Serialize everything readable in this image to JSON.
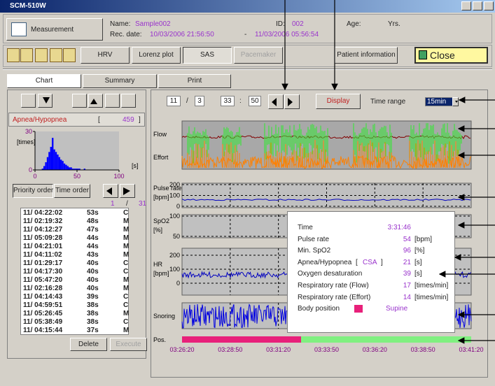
{
  "window": {
    "title": "SCM-510W"
  },
  "header": {
    "measurement": "Measurement",
    "name_label": "Name:",
    "name": "Sample002",
    "id_label": "ID:",
    "id": "002",
    "age_label": "Age:",
    "age_unit": "Yrs.",
    "rec_label": "Rec. date:",
    "rec_start": "10/03/2006 21:56:50",
    "rec_sep": "-",
    "rec_end": "11/03/2006 05:56:54"
  },
  "toolbar": {
    "tabs": [
      "HRV",
      "Lorenz plot",
      "SAS",
      "Pacemaker"
    ],
    "patient_info": "Patient information",
    "close": "Close"
  },
  "view_tabs": [
    "Chart",
    "Summary",
    "Print"
  ],
  "events": {
    "label": "Apnea/Hypopnea",
    "open": "[",
    "count": 459,
    "close": "]",
    "sort_buttons": [
      "Priority order",
      "Time order"
    ],
    "page": 1,
    "page_sep": "/",
    "pages": 31,
    "rows": [
      [
        "11/ 04:22:02",
        "53s",
        "C"
      ],
      [
        "11/ 02:19:32",
        "48s",
        "M"
      ],
      [
        "11/ 04:12:27",
        "47s",
        "M"
      ],
      [
        "11/ 05:09:28",
        "44s",
        "M"
      ],
      [
        "11/ 04:21:01",
        "44s",
        "M"
      ],
      [
        "11/ 04:11:02",
        "43s",
        "M"
      ],
      [
        "11/ 01:29:17",
        "40s",
        "C"
      ],
      [
        "11/ 04:17:30",
        "40s",
        "C"
      ],
      [
        "11/ 05:47:20",
        "40s",
        "M"
      ],
      [
        "11/ 02:16:28",
        "40s",
        "M"
      ],
      [
        "11/ 04:14:43",
        "39s",
        "C"
      ],
      [
        "11/ 04:59:51",
        "38s",
        "C"
      ],
      [
        "11/ 05:26:45",
        "38s",
        "M"
      ],
      [
        "11/ 05:38:49",
        "38s",
        "C"
      ],
      [
        "11/ 04:15:44",
        "37s",
        "M"
      ]
    ],
    "delete": "Delete",
    "execute": "Execute"
  },
  "chart_data": {
    "type": "histogram",
    "y_label": "[times]",
    "x_label": "[s]",
    "color": "#0000ff",
    "bins": [
      8,
      10,
      12,
      14,
      16,
      18,
      20,
      22,
      24,
      26,
      28,
      30,
      32,
      34,
      36,
      38,
      40,
      42,
      44,
      46,
      48,
      50,
      52,
      54,
      56,
      58,
      60
    ],
    "counts": [
      1,
      3,
      6,
      10,
      14,
      18,
      25,
      16,
      14,
      12,
      10,
      8,
      7,
      5,
      4,
      3,
      2,
      2,
      1,
      1,
      1,
      1,
      1,
      0,
      0,
      1
    ],
    "xlim": [
      0,
      100
    ],
    "xticks": [
      0,
      50,
      100
    ],
    "ylim": [
      0,
      30
    ],
    "yticks": [
      0,
      30
    ]
  },
  "controls": {
    "month": "11",
    "sep1": "/",
    "day": "3",
    "hour": "33",
    "sep2": ":",
    "minute": "50",
    "display": "Display",
    "time_range_label": "Time range",
    "time_range": "15min"
  },
  "traces": {
    "flow": "Flow",
    "effort": "Effort",
    "pulse_label": "Pulse rate",
    "pulse_unit": "[bpm]",
    "pulse_ylim": [
      0,
      200
    ],
    "pulse_ticks": [
      0,
      100,
      200
    ],
    "spo2_label": "SpO2",
    "spo2_unit": "[%]",
    "spo2_ylim": [
      50,
      100
    ],
    "spo2_ticks": [
      50,
      100
    ],
    "hr_label": "HR",
    "hr_unit": "[bpm]",
    "hr_ylim": [
      0,
      200
    ],
    "hr_ticks": [
      0,
      100,
      200
    ],
    "snoring": "Snoring",
    "pos": "Pos.",
    "time_ticks": [
      "03:26:20",
      "03:28:50",
      "03:31:20",
      "03:33:50",
      "03:36:20",
      "03:38:50",
      "03:41:20"
    ]
  },
  "popup": {
    "rows": [
      {
        "label": "Time",
        "value": "3:31:46"
      },
      {
        "label": "Pulse rate",
        "value": 54,
        "unit": "[bpm]"
      },
      {
        "label": "Min. SpO2",
        "value": 96,
        "unit": "[%]"
      },
      {
        "label": "Apnea/Hypopnea",
        "open": "[",
        "kind": "CSA",
        "close": "]",
        "value": 21,
        "unit": "[s]"
      },
      {
        "label": "Oxygen desaturation",
        "value": 39,
        "unit": "[s]"
      },
      {
        "label": "Respiratory rate (Flow)",
        "value": 17,
        "unit": "[times/min]"
      },
      {
        "label": "Respiratory rate (Effort)",
        "value": 14,
        "unit": "[times/min]"
      },
      {
        "label": "Body position",
        "value": "Supine"
      }
    ]
  }
}
